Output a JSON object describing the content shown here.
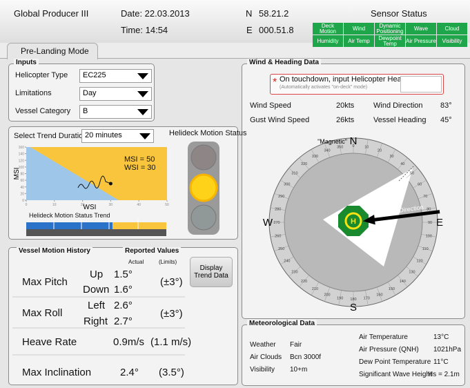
{
  "header": {
    "vessel": "Global Producer III",
    "date": "Date: 22.03.2013",
    "time": "Time: 14:54",
    "lat_label": "N",
    "lat": "58.21.2",
    "lon_label": "E",
    "lon": "000.51.8"
  },
  "sensor_status": {
    "title": "Sensor Status",
    "sensors": [
      "Deck Motion",
      "Wind",
      "Dynamic Positioning",
      "Wave",
      "Cloud",
      "Humidity",
      "Air Temp",
      "Dewpoint Temp",
      "Air Pressure",
      "Visibility"
    ]
  },
  "tab": "Pre-Landing Mode",
  "inputs": {
    "title": "Inputs",
    "fields": [
      {
        "label": "Helicopter Type",
        "value": "EC225"
      },
      {
        "label": "Limitations",
        "value": "Day"
      },
      {
        "label": "Vessel Category",
        "value": "B"
      }
    ]
  },
  "trend": {
    "select_label": "Select Trend Duration",
    "duration": "20 minutes",
    "status_title": "Helideck Motion Status",
    "trend_title": "Helideck Motion Status Trend"
  },
  "chart_data": {
    "type": "scatter",
    "x_label": "WSI",
    "y_label": "MSI",
    "xlim": [
      0,
      50
    ],
    "ylim": [
      0,
      160
    ],
    "xticks": [
      0,
      10,
      20,
      30,
      40,
      50
    ],
    "yticks": [
      0,
      20,
      40,
      60,
      80,
      100,
      120,
      140,
      160
    ],
    "x": [
      30
    ],
    "values": [
      50
    ],
    "annotations": [
      "MSI = 50",
      "WSI = 30"
    ]
  },
  "motion": {
    "title": "Vessel Motion History",
    "reported": "Reported Values",
    "actual_header": "Actual",
    "limits_header": "(Limits)",
    "button": "Display Trend Data",
    "rows": [
      {
        "name": "Max Pitch",
        "sub": [
          {
            "label": "Up",
            "value": "1.5°"
          },
          {
            "label": "Down",
            "value": "1.6°"
          }
        ],
        "limit": "(±3°)"
      },
      {
        "name": "Max Roll",
        "sub": [
          {
            "label": "Left",
            "value": "2.6°"
          },
          {
            "label": "Right",
            "value": "2.7°"
          }
        ],
        "limit": "(±3°)"
      },
      {
        "name": "Heave Rate",
        "value": "0.9m/s",
        "limit": "(1.1 m/s)"
      },
      {
        "name": "Max Inclination",
        "value": "2.4°",
        "limit": "(3.5°)"
      }
    ]
  },
  "wind": {
    "title": "Wind & Heading Data",
    "required": "*",
    "prompt": "On touchdown, input Helicopter Heading:",
    "prompt_note": "(Automatically activates \"on-deck\" mode)",
    "readings": [
      {
        "label": "Wind Speed",
        "value": "20kts"
      },
      {
        "label": "Wind Direction",
        "value": 83,
        "value_label": "83°"
      },
      {
        "label": "Gust Wind Speed",
        "value": "26kts"
      },
      {
        "label": "Vessel Heading",
        "value": 45,
        "value_label": "45°"
      }
    ]
  },
  "compass": {
    "reference": "\"Magnetic\"",
    "cardinals": [
      "N",
      "E",
      "S",
      "W"
    ],
    "degrees": [
      0,
      10,
      20,
      30,
      40,
      50,
      60,
      70,
      80,
      90,
      100,
      110,
      120,
      130,
      140,
      150,
      160,
      170,
      180,
      190,
      200,
      210,
      220,
      230,
      240,
      250,
      260,
      270,
      280,
      290,
      300,
      310,
      320,
      330,
      340,
      350
    ],
    "arrow_label": "Wind Direction",
    "helideck": "H"
  },
  "meteo": {
    "title": "Meteorological Data",
    "left": [
      {
        "label": "Weather",
        "value": "Fair"
      },
      {
        "label": "Air Clouds",
        "value": "Bcn 3000f"
      },
      {
        "label": "Visibility",
        "value": "10+m"
      }
    ],
    "right": [
      {
        "label": "Air Temperature",
        "value": "13°C"
      },
      {
        "label": "Air Pressure (QNH)",
        "value": "1021hPa"
      },
      {
        "label": "Dew Point Temperature",
        "value": "11°C"
      },
      {
        "label": "Significant Wave Height",
        "value": "Hs = 2.1m"
      }
    ]
  }
}
